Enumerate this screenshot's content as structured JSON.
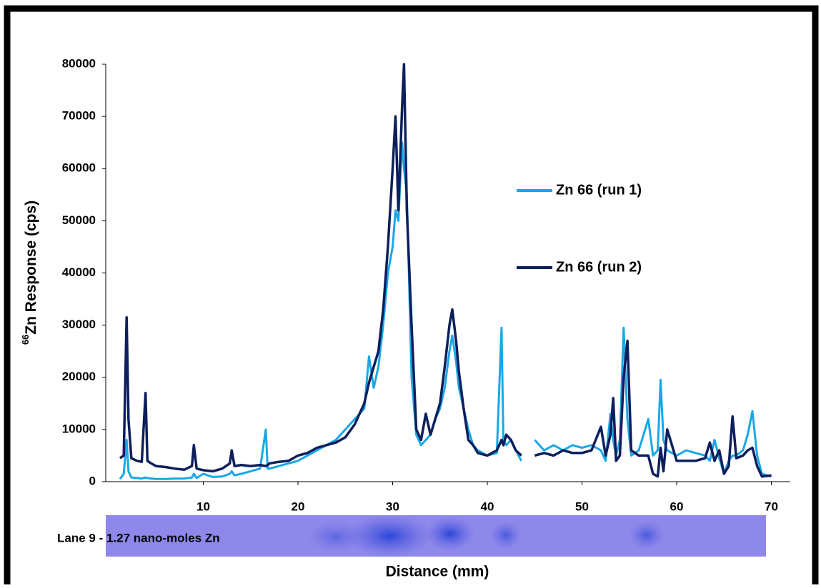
{
  "chart_data": {
    "type": "line",
    "y_label_superscript": "66",
    "y_label": "Zn Response (cps)",
    "x_label": "Distance (mm)",
    "gel_label": "Lane 9 - 1.27 nano-moles Zn",
    "x": [
      1.2,
      1.6,
      1.9,
      2.1,
      2.4,
      3,
      3.5,
      3.9,
      4.1,
      4.5,
      5,
      6,
      7,
      8,
      8.8,
      9,
      9.3,
      10,
      11,
      12,
      12.8,
      13,
      13.3,
      14,
      15,
      16,
      16.6,
      16.8,
      17,
      18,
      19,
      20,
      21,
      22,
      23,
      24,
      25,
      26,
      27,
      27.5,
      28,
      28.5,
      29,
      29.5,
      30,
      30.3,
      30.6,
      31,
      31.2,
      31.5,
      32,
      32.5,
      33,
      33.5,
      34,
      34.5,
      35,
      35.5,
      36,
      36.3,
      36.7,
      37,
      37.5,
      38,
      38.5,
      39,
      40,
      41,
      41.5,
      41.7,
      42,
      42.5,
      43,
      43.6,
      44,
      45,
      46,
      47,
      48,
      49,
      50,
      51,
      52,
      52.5,
      53,
      53.3,
      53.6,
      54,
      54.4,
      54.8,
      55.2,
      56,
      57,
      57.5,
      58,
      58.3,
      58.6,
      59,
      60,
      61,
      62,
      63,
      63.5,
      64,
      64.5,
      65,
      65.5,
      65.9,
      66.3,
      67,
      67.5,
      68,
      68.5,
      69,
      70
    ],
    "series": [
      {
        "name": "Zn 66 (run 1)",
        "color": "#1aa7e6",
        "values": [
          500,
          1500,
          8000,
          2000,
          800,
          700,
          600,
          800,
          700,
          600,
          500,
          500,
          600,
          600,
          800,
          1500,
          700,
          1500,
          900,
          1000,
          1500,
          2000,
          1200,
          1500,
          2000,
          2500,
          10000,
          2500,
          2500,
          3000,
          3500,
          4000,
          5000,
          6000,
          7000,
          8000,
          10000,
          12000,
          14000,
          24000,
          18000,
          22000,
          30000,
          40000,
          45000,
          52000,
          50000,
          65000,
          60000,
          55000,
          20000,
          9000,
          7000,
          8000,
          9000,
          12000,
          14000,
          18000,
          25000,
          28000,
          23000,
          18000,
          14000,
          10000,
          7000,
          6000,
          5000,
          5500,
          29500,
          8000,
          7000,
          8000,
          6000,
          4000,
          null,
          8000,
          6000,
          7000,
          6000,
          7000,
          6500,
          7000,
          6000,
          4000,
          13000,
          8000,
          5000,
          8000,
          29500,
          12000,
          5000,
          6000,
          12000,
          5000,
          6000,
          19500,
          8000,
          6000,
          5000,
          6000,
          5500,
          5000,
          4000,
          8000,
          4500,
          1500,
          4000,
          5000,
          5000,
          6000,
          9000,
          13500,
          5000,
          1500,
          1000
        ]
      },
      {
        "name": "Zn 66 (run 2)",
        "color": "#0d1f5c",
        "values": [
          4500,
          5000,
          31500,
          12000,
          4500,
          4000,
          3800,
          17000,
          4000,
          3500,
          3000,
          2800,
          2500,
          2300,
          3000,
          7000,
          2500,
          2200,
          2000,
          2500,
          3500,
          6000,
          3000,
          3200,
          3000,
          3200,
          3000,
          3200,
          3500,
          3800,
          4000,
          5000,
          5500,
          6500,
          7000,
          7500,
          8500,
          11000,
          15000,
          19000,
          22000,
          25000,
          33000,
          45000,
          60000,
          70000,
          52000,
          72000,
          80000,
          52000,
          30000,
          10000,
          8000,
          13000,
          9000,
          12000,
          15000,
          22000,
          30000,
          33000,
          27000,
          21000,
          14000,
          8000,
          7000,
          5500,
          5000,
          6000,
          8000,
          7000,
          9000,
          8000,
          6000,
          5000,
          null,
          5000,
          5500,
          5000,
          6000,
          5500,
          5500,
          6000,
          10500,
          5000,
          9000,
          16000,
          4000,
          5000,
          20000,
          27000,
          6000,
          5000,
          5000,
          1500,
          1000,
          6500,
          2000,
          10000,
          4000,
          4000,
          4000,
          4500,
          7500,
          4000,
          6000,
          1500,
          3000,
          12500,
          4500,
          5000,
          6000,
          6500,
          3000,
          1000,
          1200
        ]
      }
    ],
    "xlim": [
      0,
      72
    ],
    "xticks": [
      10,
      20,
      30,
      40,
      50,
      60,
      70
    ],
    "ylim": [
      0,
      80000
    ],
    "yticks": [
      0,
      10000,
      20000,
      30000,
      40000,
      50000,
      60000,
      70000,
      80000
    ]
  }
}
